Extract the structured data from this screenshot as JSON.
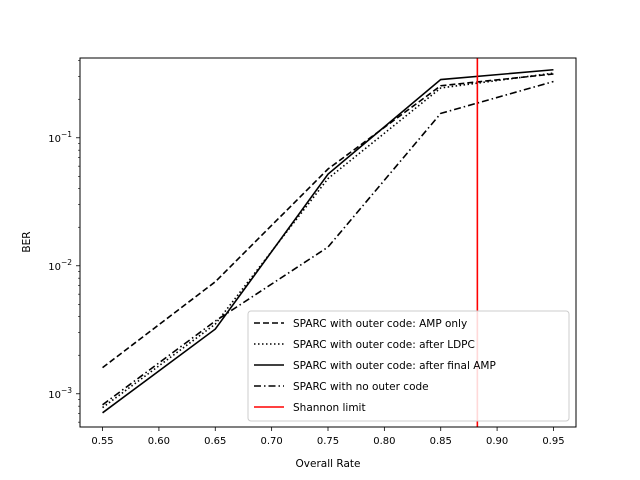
{
  "chart_data": {
    "type": "line",
    "xlabel": "Overall Rate",
    "ylabel": "BER",
    "x_scale": "linear",
    "y_scale": "log",
    "xlim": [
      0.53,
      0.97
    ],
    "ylim": [
      0.00055,
      0.42
    ],
    "x_ticks": [
      0.55,
      0.6,
      0.65,
      0.7,
      0.75,
      0.8,
      0.85,
      0.9,
      0.95
    ],
    "x_tick_labels": [
      "0.55",
      "0.60",
      "0.65",
      "0.70",
      "0.75",
      "0.80",
      "0.85",
      "0.90",
      "0.95"
    ],
    "y_major_ticks": [
      0.001,
      0.01,
      0.1
    ],
    "y_tick_labels": [
      {
        "base": "10",
        "exp": "−3"
      },
      {
        "base": "10",
        "exp": "−2"
      },
      {
        "base": "10",
        "exp": "−1"
      }
    ],
    "grid": false,
    "legend_position": "lower-right",
    "x": [
      0.55,
      0.65,
      0.75,
      0.85,
      0.95
    ],
    "series": [
      {
        "name": "SPARC with outer code: AMP only",
        "style": "dashed",
        "color": "#000000",
        "values": [
          0.0016,
          0.0075,
          0.057,
          0.255,
          0.315
        ]
      },
      {
        "name": "SPARC with outer code: after LDPC",
        "style": "dotted",
        "color": "#000000",
        "values": [
          0.00078,
          0.0035,
          0.048,
          0.245,
          0.32
        ]
      },
      {
        "name": "SPARC with outer code: after final AMP",
        "style": "solid",
        "color": "#000000",
        "values": [
          0.00071,
          0.0032,
          0.052,
          0.285,
          0.34
        ]
      },
      {
        "name": "SPARC with no outer code",
        "style": "dashdot",
        "color": "#000000",
        "values": [
          0.00082,
          0.0037,
          0.014,
          0.155,
          0.275
        ]
      }
    ],
    "vertical_lines": [
      {
        "name": "Shannon limit",
        "x": 0.8825,
        "color": "#ff0000",
        "style": "solid"
      }
    ]
  }
}
